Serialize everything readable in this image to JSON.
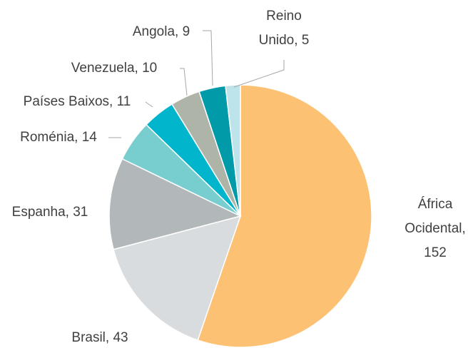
{
  "chart_data": {
    "type": "pie",
    "labels": [
      "África Ocidental, 152",
      "Brasil, 43",
      "Espanha, 31",
      "Roménia, 14",
      "Países Baixos, 11",
      "Venezuela, 10",
      "Angola, 9",
      "Reino Unido, 5"
    ],
    "values": [
      152,
      43,
      31,
      14,
      11,
      10,
      9,
      5
    ],
    "colors": [
      "#FDC173",
      "#D9DCDE",
      "#B2B8BA",
      "#78CDCF",
      "#00B5CC",
      "#AEB5A8",
      "#009AA8",
      "#BDE4EA"
    ]
  }
}
